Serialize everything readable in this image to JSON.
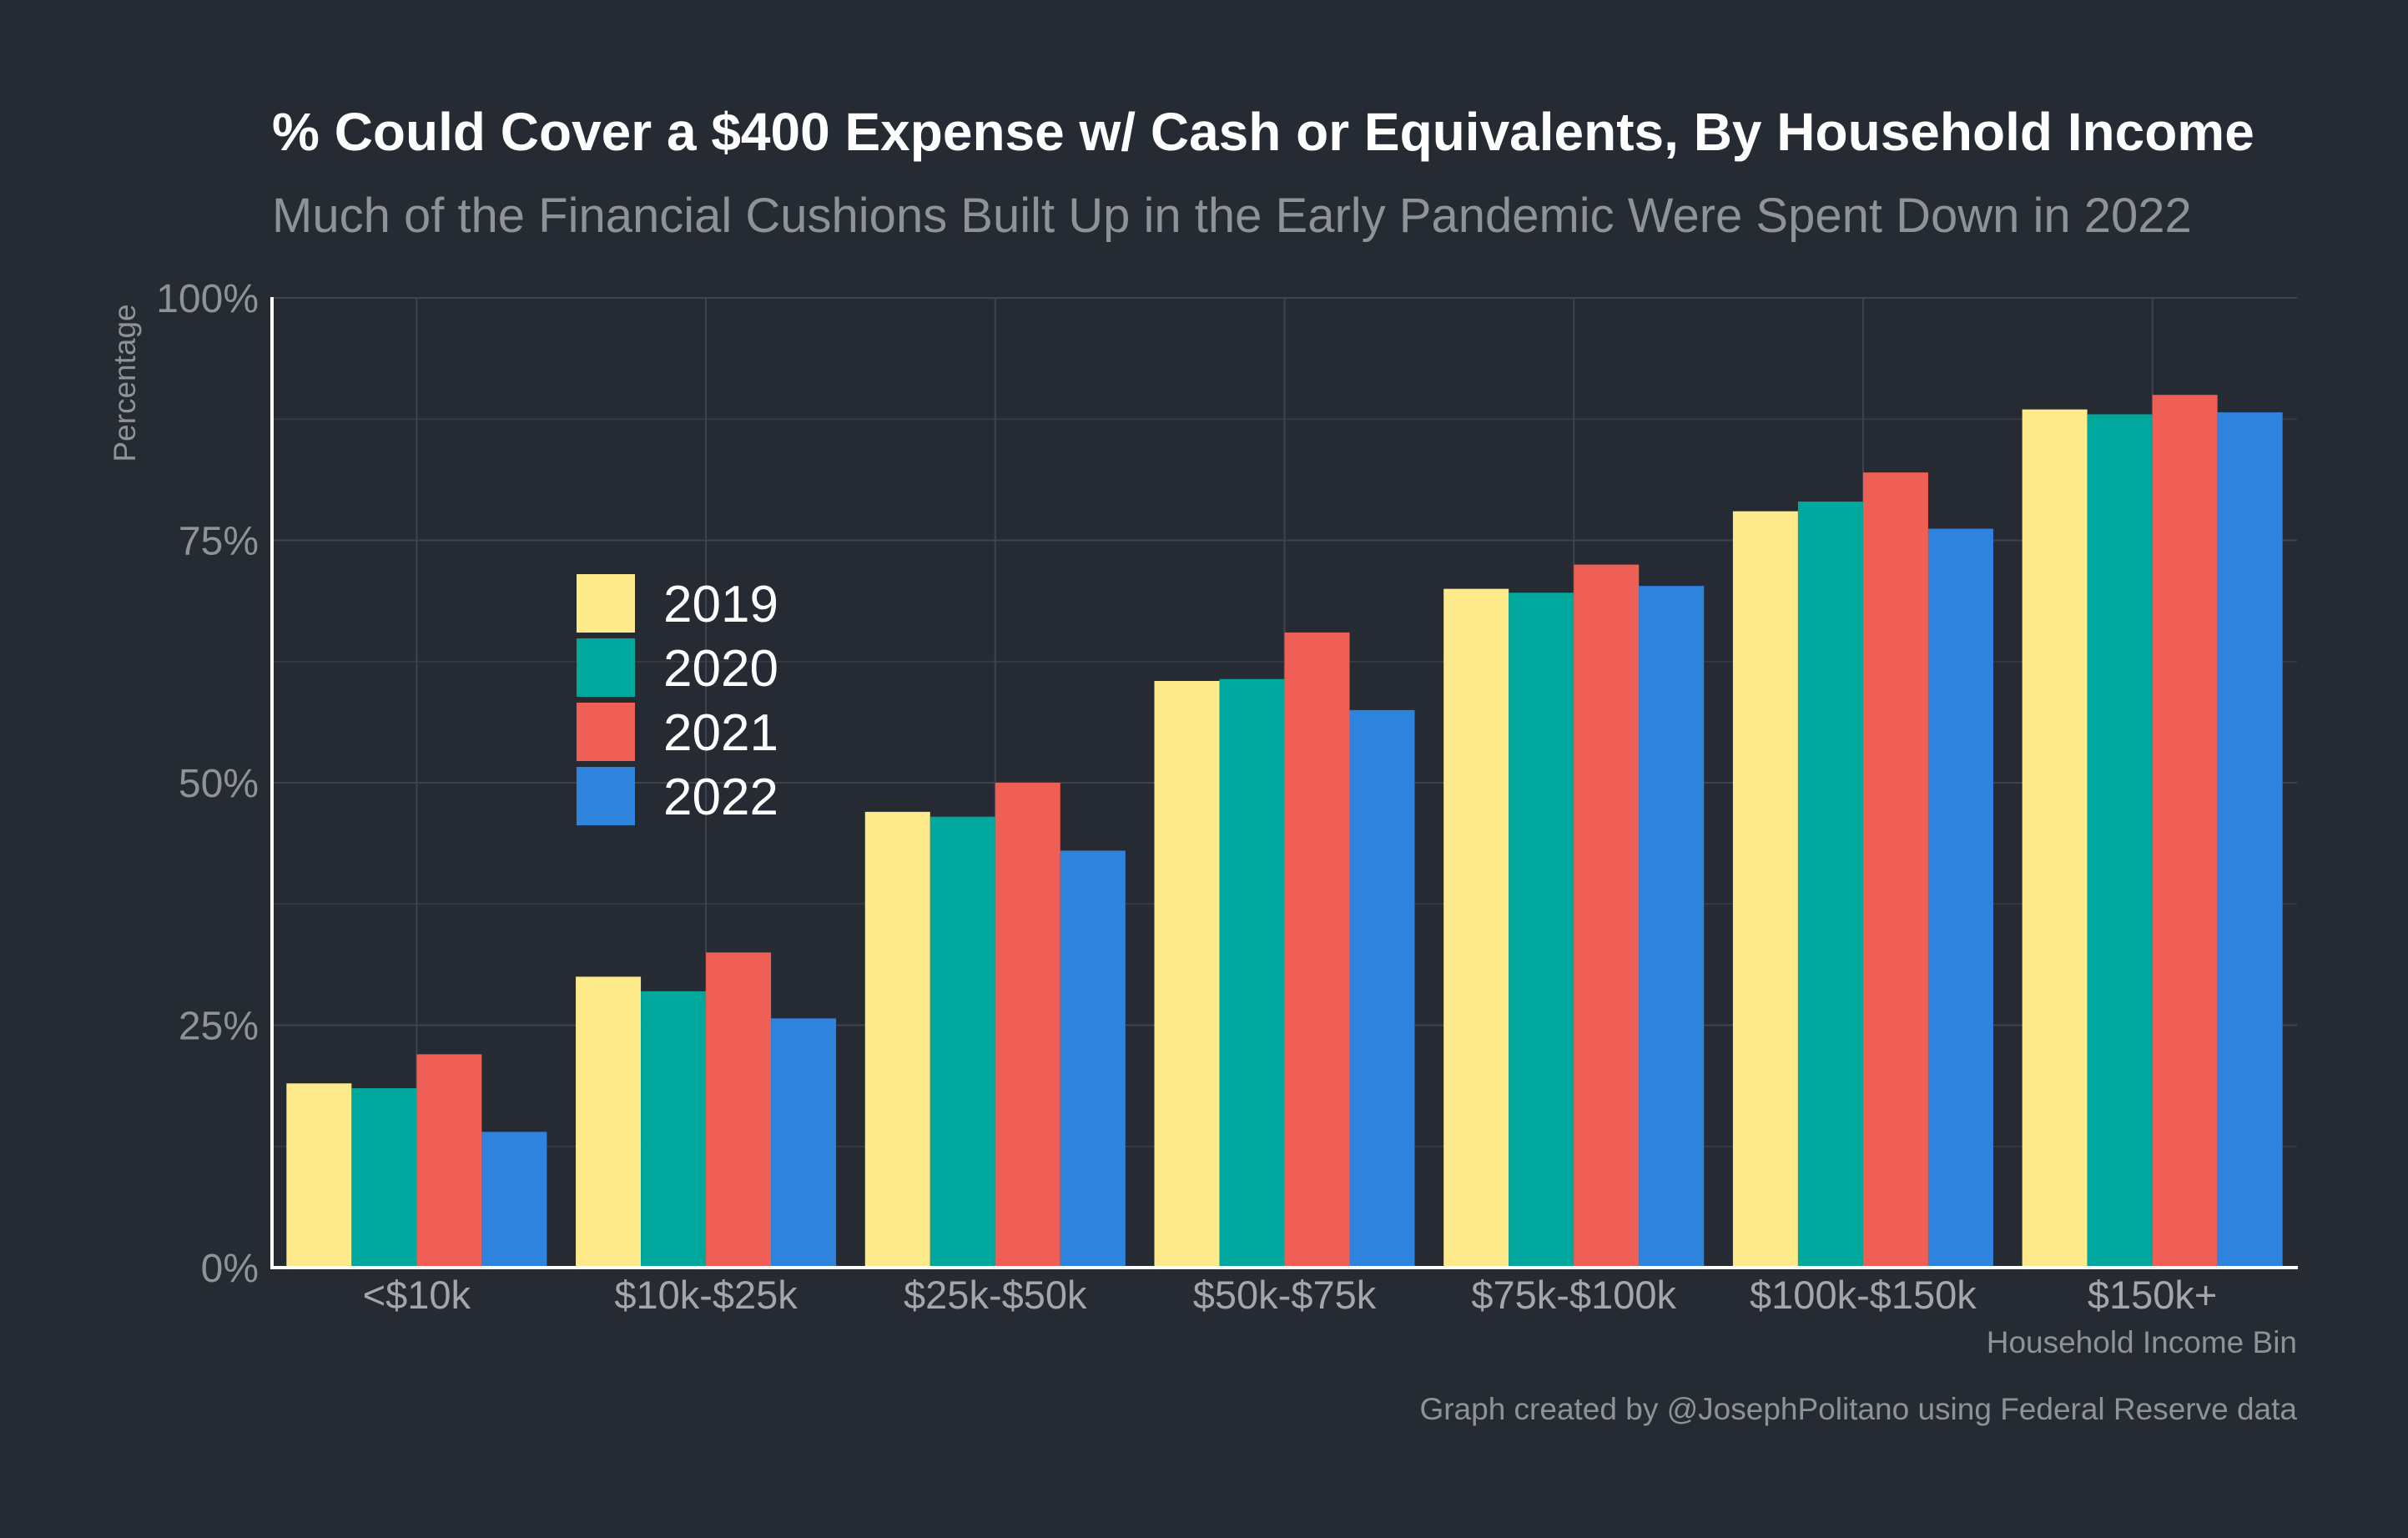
{
  "chart_data": {
    "type": "bar",
    "title": "% Could Cover a $400 Expense w/ Cash or Equivalents, By Household Income",
    "subtitle": "Much of the Financial Cushions Built Up in the Early Pandemic Were Spent Down in 2022",
    "xlabel": "Household Income Bin",
    "ylabel": "Percentage",
    "caption": "Graph created by @JosephPolitano using Federal Reserve data",
    "ylim": [
      0,
      100
    ],
    "yticks": [
      0,
      25,
      50,
      75,
      100
    ],
    "ytick_labels": [
      "0%",
      "25%",
      "50%",
      "75%",
      "100%"
    ],
    "categories": [
      "<$10k",
      "$10k-$25k",
      "$25k-$50k",
      "$50k-$75k",
      "$75k-$100k",
      "$100k-$150k",
      "$150k+"
    ],
    "series": [
      {
        "name": "2019",
        "color": "#fee98b",
        "values": [
          19,
          30,
          47,
          60.5,
          70,
          78,
          88.5
        ]
      },
      {
        "name": "2020",
        "color": "#00a79d",
        "values": [
          18.5,
          28.5,
          46.5,
          60.7,
          69.6,
          79,
          88
        ]
      },
      {
        "name": "2021",
        "color": "#ef5f55",
        "values": [
          22,
          32.5,
          50,
          65.5,
          72.5,
          82,
          90
        ]
      },
      {
        "name": "2022",
        "color": "#2e83dd",
        "values": [
          14,
          25.7,
          43,
          57.5,
          70.3,
          76.2,
          88.2
        ]
      }
    ],
    "legend_position": "upper-left",
    "grid": true
  }
}
